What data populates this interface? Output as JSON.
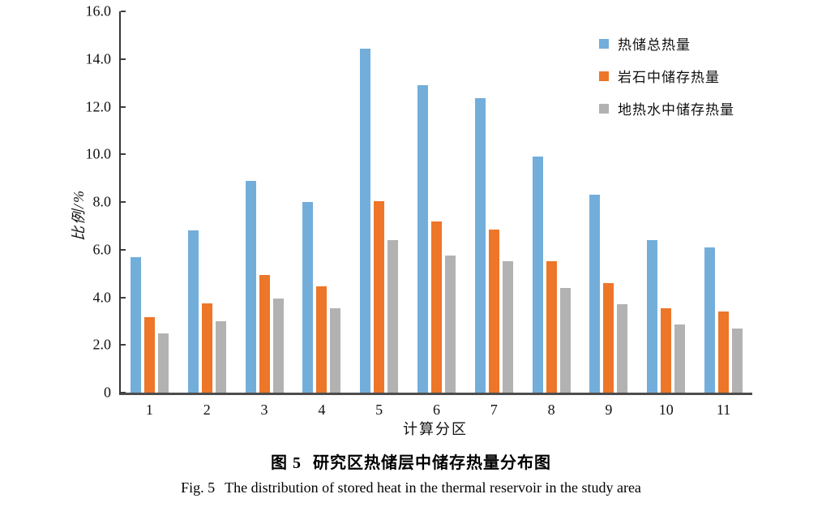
{
  "figure": {
    "caption_zh": {
      "prefix": "图 5",
      "text": "研究区热储层中储存热量分布图"
    },
    "caption_en": {
      "prefix": "Fig. 5",
      "text": "The distribution of stored heat in the thermal reservoir in the study area"
    }
  },
  "chart_data": {
    "type": "bar",
    "title": "图 5 研究区热储层中储存热量分布图",
    "title_en": "Fig. 5 The distribution of stored heat in the thermal reservoir in the study area",
    "xlabel": "计算分区",
    "ylabel": "比例/%",
    "ylim": [
      0,
      16
    ],
    "grid": false,
    "legend_position": "top-right",
    "axis_color": "#4d4d4d",
    "yticks": [
      {
        "value": 0,
        "label": "0"
      },
      {
        "value": 2,
        "label": "2.0"
      },
      {
        "value": 4,
        "label": "4.0"
      },
      {
        "value": 6,
        "label": "6.0"
      },
      {
        "value": 8,
        "label": "8.0"
      },
      {
        "value": 10,
        "label": "10.0"
      },
      {
        "value": 12,
        "label": "12.0"
      },
      {
        "value": 14,
        "label": "14.0"
      },
      {
        "value": 16,
        "label": "16.0"
      }
    ],
    "categories": [
      "1",
      "2",
      "3",
      "4",
      "5",
      "6",
      "7",
      "8",
      "9",
      "10",
      "11"
    ],
    "series": [
      {
        "key": "total-heat",
        "name": "热储总热量",
        "color": "#73AEDB",
        "values": [
          5.7,
          6.8,
          8.9,
          8.0,
          14.45,
          12.9,
          12.35,
          9.9,
          8.3,
          6.4,
          6.1
        ]
      },
      {
        "key": "rock-heat",
        "name": "岩石中储存热量",
        "color": "#ED7628",
        "values": [
          3.15,
          3.75,
          4.95,
          4.45,
          8.05,
          7.2,
          6.85,
          5.5,
          4.6,
          3.55,
          3.4
        ]
      },
      {
        "key": "water-heat",
        "name": "地热水中储存热量",
        "color": "#B3B2B2",
        "values": [
          2.5,
          3.0,
          3.95,
          3.55,
          6.4,
          5.75,
          5.5,
          4.4,
          3.7,
          2.85,
          2.7
        ]
      }
    ]
  }
}
